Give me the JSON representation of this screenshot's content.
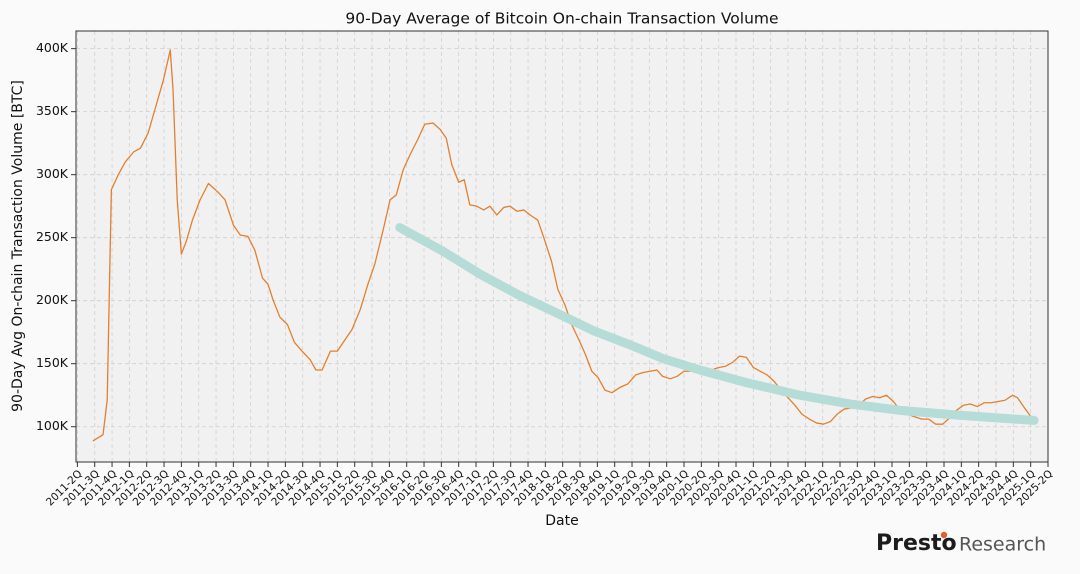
{
  "chart_data": {
    "type": "line",
    "title": "90-Day Average of Bitcoin On-chain Transaction Volume",
    "xlabel": "Date",
    "ylabel": "90-Day Avg On-chain Transaction Volume [BTC]",
    "xlim": [
      2011.23,
      2025.25
    ],
    "ylim": [
      72000,
      414000
    ],
    "grid": true,
    "yticks": [
      {
        "value": 100000,
        "label": "100K"
      },
      {
        "value": 150000,
        "label": "150K"
      },
      {
        "value": 200000,
        "label": "200K"
      },
      {
        "value": 250000,
        "label": "250K"
      },
      {
        "value": 300000,
        "label": "300K"
      },
      {
        "value": 350000,
        "label": "350K"
      },
      {
        "value": 400000,
        "label": "400K"
      }
    ],
    "xticks": [
      {
        "value": 2011.25,
        "label": "2011-2Q"
      },
      {
        "value": 2011.5,
        "label": "2011-3Q"
      },
      {
        "value": 2011.75,
        "label": "2011-4Q"
      },
      {
        "value": 2012,
        "label": "2012-1Q"
      },
      {
        "value": 2012.25,
        "label": "2012-2Q"
      },
      {
        "value": 2012.5,
        "label": "2012-3Q"
      },
      {
        "value": 2012.75,
        "label": "2012-4Q"
      },
      {
        "value": 2013,
        "label": "2013-1Q"
      },
      {
        "value": 2013.25,
        "label": "2013-2Q"
      },
      {
        "value": 2013.5,
        "label": "2013-3Q"
      },
      {
        "value": 2013.75,
        "label": "2013-4Q"
      },
      {
        "value": 2014,
        "label": "2014-1Q"
      },
      {
        "value": 2014.25,
        "label": "2014-2Q"
      },
      {
        "value": 2014.5,
        "label": "2014-3Q"
      },
      {
        "value": 2014.75,
        "label": "2014-4Q"
      },
      {
        "value": 2015,
        "label": "2015-1Q"
      },
      {
        "value": 2015.25,
        "label": "2015-2Q"
      },
      {
        "value": 2015.5,
        "label": "2015-3Q"
      },
      {
        "value": 2015.75,
        "label": "2015-4Q"
      },
      {
        "value": 2016,
        "label": "2016-1Q"
      },
      {
        "value": 2016.25,
        "label": "2016-2Q"
      },
      {
        "value": 2016.5,
        "label": "2016-3Q"
      },
      {
        "value": 2016.75,
        "label": "2016-4Q"
      },
      {
        "value": 2017,
        "label": "2017-1Q"
      },
      {
        "value": 2017.25,
        "label": "2017-2Q"
      },
      {
        "value": 2017.5,
        "label": "2017-3Q"
      },
      {
        "value": 2017.75,
        "label": "2017-4Q"
      },
      {
        "value": 2018,
        "label": "2018-1Q"
      },
      {
        "value": 2018.25,
        "label": "2018-2Q"
      },
      {
        "value": 2018.5,
        "label": "2018-3Q"
      },
      {
        "value": 2018.75,
        "label": "2018-4Q"
      },
      {
        "value": 2019,
        "label": "2019-1Q"
      },
      {
        "value": 2019.25,
        "label": "2019-2Q"
      },
      {
        "value": 2019.5,
        "label": "2019-3Q"
      },
      {
        "value": 2019.75,
        "label": "2019-4Q"
      },
      {
        "value": 2020,
        "label": "2020-1Q"
      },
      {
        "value": 2020.25,
        "label": "2020-2Q"
      },
      {
        "value": 2020.5,
        "label": "2020-3Q"
      },
      {
        "value": 2020.75,
        "label": "2020-4Q"
      },
      {
        "value": 2021,
        "label": "2021-1Q"
      },
      {
        "value": 2021.25,
        "label": "2021-2Q"
      },
      {
        "value": 2021.5,
        "label": "2021-3Q"
      },
      {
        "value": 2021.75,
        "label": "2021-4Q"
      },
      {
        "value": 2022,
        "label": "2022-1Q"
      },
      {
        "value": 2022.25,
        "label": "2022-2Q"
      },
      {
        "value": 2022.5,
        "label": "2022-3Q"
      },
      {
        "value": 2022.75,
        "label": "2022-4Q"
      },
      {
        "value": 2023,
        "label": "2023-1Q"
      },
      {
        "value": 2023.25,
        "label": "2023-2Q"
      },
      {
        "value": 2023.5,
        "label": "2023-3Q"
      },
      {
        "value": 2023.75,
        "label": "2023-4Q"
      },
      {
        "value": 2024,
        "label": "2024-1Q"
      },
      {
        "value": 2024.25,
        "label": "2024-2Q"
      },
      {
        "value": 2024.5,
        "label": "2024-3Q"
      },
      {
        "value": 2024.75,
        "label": "2024-4Q"
      },
      {
        "value": 2025,
        "label": "2025-1Q"
      },
      {
        "value": 2025.25,
        "label": "2025-2Q"
      }
    ],
    "series": [
      {
        "color": "#e2802f",
        "linewidth": 1.3,
        "x": [
          2011.48,
          2011.62,
          2011.68,
          2011.74,
          2011.84,
          2011.94,
          2012.06,
          2012.16,
          2012.27,
          2012.37,
          2012.49,
          2012.59,
          2012.63,
          2012.69,
          2012.75,
          2012.82,
          2012.91,
          2013.02,
          2013.14,
          2013.2,
          2013.28,
          2013.38,
          2013.5,
          2013.6,
          2013.71,
          2013.81,
          2013.92,
          2014.0,
          2014.07,
          2014.17,
          2014.28,
          2014.38,
          2014.49,
          2014.61,
          2014.69,
          2014.78,
          2014.9,
          2015.0,
          2015.11,
          2015.21,
          2015.33,
          2015.44,
          2015.54,
          2015.66,
          2015.76,
          2015.85,
          2015.95,
          2016.05,
          2016.16,
          2016.26,
          2016.38,
          2016.48,
          2016.57,
          2016.65,
          2016.75,
          2016.83,
          2016.91,
          2017.01,
          2017.11,
          2017.2,
          2017.3,
          2017.4,
          2017.49,
          2017.59,
          2017.69,
          2017.78,
          2017.89,
          2017.99,
          2018.09,
          2018.18,
          2018.28,
          2018.38,
          2018.5,
          2018.58,
          2018.67,
          2018.76,
          2018.86,
          2018.96,
          2019.07,
          2019.19,
          2019.3,
          2019.41,
          2019.51,
          2019.61,
          2019.69,
          2019.8,
          2019.9,
          2020.0,
          2020.1,
          2020.2,
          2020.3,
          2020.4,
          2020.5,
          2020.6,
          2020.7,
          2020.8,
          2020.9,
          2021.0,
          2021.1,
          2021.2,
          2021.3,
          2021.4,
          2021.5,
          2021.6,
          2021.7,
          2021.81,
          2021.91,
          2022.01,
          2022.11,
          2022.21,
          2022.31,
          2022.42,
          2022.52,
          2022.62,
          2022.72,
          2022.82,
          2022.92,
          2023.02,
          2023.12,
          2023.22,
          2023.32,
          2023.43,
          2023.53,
          2023.63,
          2023.73,
          2023.83,
          2023.93,
          2024.03,
          2024.13,
          2024.23,
          2024.33,
          2024.43,
          2024.53,
          2024.63,
          2024.74,
          2024.81,
          2024.91,
          2025.03
        ],
        "values": [
          88900,
          93700,
          121000,
          288000,
          300000,
          310000,
          318000,
          321000,
          333000,
          352000,
          375000,
          399000,
          367000,
          280000,
          237000,
          247000,
          264000,
          280000,
          293000,
          290000,
          286000,
          280000,
          260000,
          252000,
          251000,
          240000,
          218000,
          213000,
          201000,
          187000,
          181000,
          167000,
          160000,
          153000,
          145000,
          145000,
          160000,
          160000,
          169000,
          177000,
          193000,
          213000,
          229000,
          256000,
          280000,
          284000,
          304000,
          316000,
          328000,
          340000,
          341000,
          336000,
          329000,
          308000,
          294000,
          296000,
          276000,
          275000,
          272000,
          275000,
          268000,
          274000,
          275000,
          271000,
          272000,
          268000,
          264000,
          248000,
          231000,
          209000,
          197000,
          181000,
          167000,
          157000,
          144000,
          139000,
          129000,
          127000,
          131000,
          134000,
          141000,
          143000,
          144000,
          145000,
          140000,
          138000,
          140000,
          144000,
          144000,
          144000,
          144000,
          145000,
          147000,
          148000,
          151000,
          156000,
          155000,
          147000,
          144000,
          141000,
          136000,
          129000,
          123000,
          117000,
          110000,
          106000,
          103000,
          102000,
          104000,
          110000,
          114000,
          115000,
          117000,
          122000,
          124000,
          123000,
          125000,
          120000,
          113000,
          110000,
          108000,
          106000,
          106000,
          102000,
          102000,
          107000,
          113000,
          117000,
          118000,
          116000,
          119000,
          119000,
          120000,
          121000,
          125000,
          123000,
          115000,
          106000
        ]
      },
      {
        "color": "#b5dcd6",
        "linewidth": 9,
        "x": [
          2015.9,
          2016.5,
          2017.06,
          2017.6,
          2018.21,
          2018.7,
          2019.22,
          2019.7,
          2020.23,
          2020.9,
          2021.67,
          2022.4,
          2023.11,
          2024.0,
          2025.05
        ],
        "values": [
          258000,
          240000,
          221000,
          205000,
          189000,
          176000,
          165000,
          154000,
          145000,
          135000,
          125000,
          118000,
          113000,
          109000,
          105000
        ]
      }
    ]
  },
  "footer": {
    "brand": "Presto",
    "suffix": "Research"
  }
}
